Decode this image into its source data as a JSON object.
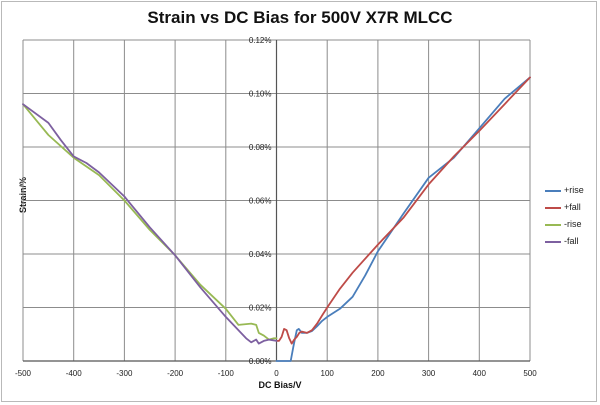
{
  "chart_data": {
    "type": "line",
    "title": "Strain vs DC Bias for 500V X7R MLCC",
    "xlabel": "DC Bias/V",
    "ylabel": "Strain/%",
    "xlim": [
      -500,
      500
    ],
    "ylim": [
      0,
      0.12
    ],
    "x_ticks": [
      -500,
      -400,
      -300,
      -200,
      -100,
      0,
      100,
      200,
      300,
      400,
      500
    ],
    "x_tick_labels": [
      "-500",
      "-400",
      "-300",
      "-200",
      "-100",
      "0",
      "100",
      "200",
      "300",
      "400",
      "500"
    ],
    "y_ticks": [
      0,
      0.02,
      0.04,
      0.06,
      0.08,
      0.1,
      0.12
    ],
    "y_tick_labels": [
      "0.00%",
      "0.02%",
      "0.04%",
      "0.06%",
      "0.08%",
      "0.10%",
      "0.12%"
    ],
    "grid": true,
    "legend_position": "right",
    "series": [
      {
        "name": "+rise",
        "color": "#4a7ebb",
        "x": [
          0,
          28,
          33,
          36,
          40,
          44,
          50,
          60,
          70,
          80,
          90,
          100,
          125,
          150,
          175,
          200,
          250,
          300,
          350,
          400,
          450,
          500
        ],
        "y": [
          0.0,
          0.0,
          0.005,
          0.008,
          0.0115,
          0.012,
          0.0105,
          0.0105,
          0.0112,
          0.013,
          0.015,
          0.0165,
          0.0195,
          0.024,
          0.032,
          0.041,
          0.055,
          0.0685,
          0.076,
          0.087,
          0.098,
          0.106
        ]
      },
      {
        "name": "+fall",
        "color": "#be4b48",
        "x": [
          500,
          450,
          400,
          350,
          300,
          250,
          200,
          150,
          125,
          100,
          90,
          80,
          70,
          60,
          50,
          45,
          40,
          35,
          30,
          25,
          20,
          15,
          10,
          5,
          0
        ],
        "y": [
          0.106,
          0.096,
          0.086,
          0.0765,
          0.066,
          0.0535,
          0.0435,
          0.033,
          0.027,
          0.02,
          0.017,
          0.014,
          0.0115,
          0.0105,
          0.011,
          0.0105,
          0.009,
          0.008,
          0.0065,
          0.0085,
          0.0115,
          0.012,
          0.009,
          0.0075,
          0.0075
        ]
      },
      {
        "name": "-rise",
        "color": "#98b954",
        "x": [
          -500,
          -450,
          -400,
          -350,
          -300,
          -250,
          -200,
          -150,
          -100,
          -75,
          -50,
          -40,
          -35,
          -25,
          -15,
          -5,
          0
        ],
        "y": [
          0.096,
          0.0845,
          0.076,
          0.0695,
          0.06,
          0.049,
          0.0395,
          0.0285,
          0.0195,
          0.0135,
          0.014,
          0.0135,
          0.0105,
          0.0095,
          0.008,
          0.0085,
          0.0085
        ]
      },
      {
        "name": "-fall",
        "color": "#7d60a0",
        "x": [
          -500,
          -450,
          -425,
          -400,
          -375,
          -350,
          -300,
          -250,
          -200,
          -150,
          -100,
          -75,
          -60,
          -50,
          -40,
          -35,
          -25,
          -15,
          0
        ],
        "y": [
          0.096,
          0.089,
          0.0825,
          0.0765,
          0.074,
          0.0705,
          0.0615,
          0.05,
          0.0395,
          0.0275,
          0.0165,
          0.0115,
          0.0085,
          0.007,
          0.008,
          0.0065,
          0.0075,
          0.008,
          0.0075
        ]
      }
    ]
  }
}
